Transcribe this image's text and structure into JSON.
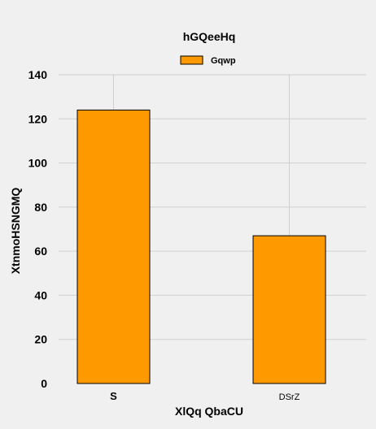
{
  "chart_data": {
    "type": "bar",
    "title": "hGQeeHq",
    "xlabel": "XlQq  QbaCU",
    "ylabel": "XtnmoHSNGMQ",
    "categories": [
      "S",
      "DSrZ"
    ],
    "series": [
      {
        "name": "Gqwp",
        "values": [
          124,
          67
        ],
        "color": "#ff9900",
        "edge_color": "#000000"
      }
    ],
    "ylim": [
      0,
      140
    ],
    "yticks": [
      "0",
      "20",
      "40",
      "60",
      "80",
      "100",
      "120",
      "140"
    ],
    "grid": true,
    "legend_position": "top-center"
  }
}
